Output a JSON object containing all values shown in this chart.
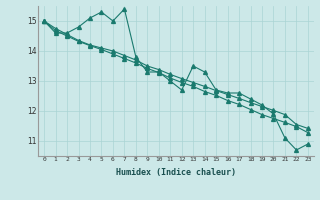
{
  "xlabel": "Humidex (Indice chaleur)",
  "ylabel": "",
  "bg_color": "#cce8e8",
  "line_color": "#1a7a6e",
  "xlim": [
    -0.5,
    23.5
  ],
  "ylim": [
    10.5,
    15.5
  ],
  "yticks": [
    11,
    12,
    13,
    14,
    15
  ],
  "xticks": [
    0,
    1,
    2,
    3,
    4,
    5,
    6,
    7,
    8,
    9,
    10,
    11,
    12,
    13,
    14,
    15,
    16,
    17,
    18,
    19,
    20,
    21,
    22,
    23
  ],
  "series1_x": [
    0,
    1,
    2,
    3,
    4,
    5,
    6,
    7,
    8,
    9,
    10,
    11,
    12,
    13,
    14,
    15,
    16,
    17,
    18,
    19,
    20,
    21,
    22,
    23
  ],
  "series1_y": [
    15.0,
    14.6,
    14.6,
    14.8,
    15.1,
    15.3,
    15.0,
    15.4,
    13.8,
    13.3,
    13.3,
    13.0,
    12.7,
    13.5,
    13.3,
    12.7,
    12.6,
    12.6,
    12.4,
    12.2,
    11.9,
    11.1,
    10.7,
    10.9
  ],
  "series2_x": [
    0,
    1,
    2,
    3,
    4,
    5,
    6,
    7,
    8,
    9,
    10,
    11,
    12,
    13,
    14,
    15,
    16,
    17,
    18,
    19,
    20,
    21,
    22,
    23
  ],
  "series2_y": [
    15.0,
    14.75,
    14.55,
    14.35,
    14.2,
    14.1,
    14.0,
    13.85,
    13.7,
    13.5,
    13.38,
    13.22,
    13.08,
    12.95,
    12.82,
    12.68,
    12.55,
    12.42,
    12.28,
    12.15,
    12.02,
    11.88,
    11.55,
    11.42
  ],
  "series3_x": [
    0,
    1,
    2,
    3,
    4,
    5,
    6,
    7,
    8,
    9,
    10,
    11,
    12,
    13,
    14,
    15,
    16,
    17,
    18,
    19,
    20,
    21,
    22,
    23
  ],
  "series3_y": [
    15.0,
    14.68,
    14.5,
    14.32,
    14.18,
    14.05,
    13.9,
    13.75,
    13.6,
    13.42,
    13.28,
    13.1,
    12.95,
    12.82,
    12.65,
    12.52,
    12.35,
    12.22,
    12.05,
    11.88,
    11.75,
    11.62,
    11.48,
    11.28
  ]
}
